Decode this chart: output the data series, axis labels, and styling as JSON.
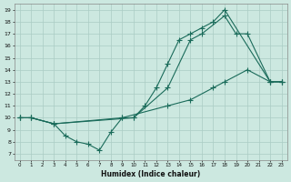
{
  "xlabel": "Humidex (Indice chaleur)",
  "bg_color": "#cce8e0",
  "line_color": "#1a6b5a",
  "grid_color": "#aaccc4",
  "xlim": [
    -0.5,
    23.5
  ],
  "ylim": [
    6.5,
    19.5
  ],
  "xticks": [
    0,
    1,
    2,
    3,
    4,
    5,
    6,
    7,
    8,
    9,
    10,
    11,
    12,
    13,
    14,
    15,
    16,
    17,
    18,
    19,
    20,
    21,
    22,
    23
  ],
  "yticks": [
    7,
    8,
    9,
    10,
    11,
    12,
    13,
    14,
    15,
    16,
    17,
    18,
    19
  ],
  "line1_x": [
    0,
    1,
    3,
    10,
    11,
    12,
    13,
    14,
    15,
    16,
    17,
    18,
    22,
    23
  ],
  "line1_y": [
    10,
    10,
    9.5,
    10,
    11,
    12.5,
    14.5,
    16.5,
    17,
    17.5,
    18,
    19,
    13,
    13
  ],
  "line2_x": [
    0,
    1,
    3,
    4,
    5,
    6,
    7,
    8,
    9,
    10,
    13,
    15,
    16,
    18,
    19,
    20,
    22,
    23
  ],
  "line2_y": [
    10,
    10,
    9.5,
    8.5,
    8,
    7.8,
    7.3,
    8.8,
    10,
    10,
    12.5,
    16.5,
    17,
    18.5,
    17,
    17,
    13,
    13
  ],
  "line3_x": [
    0,
    1,
    3,
    9,
    13,
    15,
    17,
    18,
    20,
    22,
    23
  ],
  "line3_y": [
    10,
    10,
    9.5,
    10,
    11,
    11.5,
    12.5,
    13,
    14,
    13,
    13
  ]
}
